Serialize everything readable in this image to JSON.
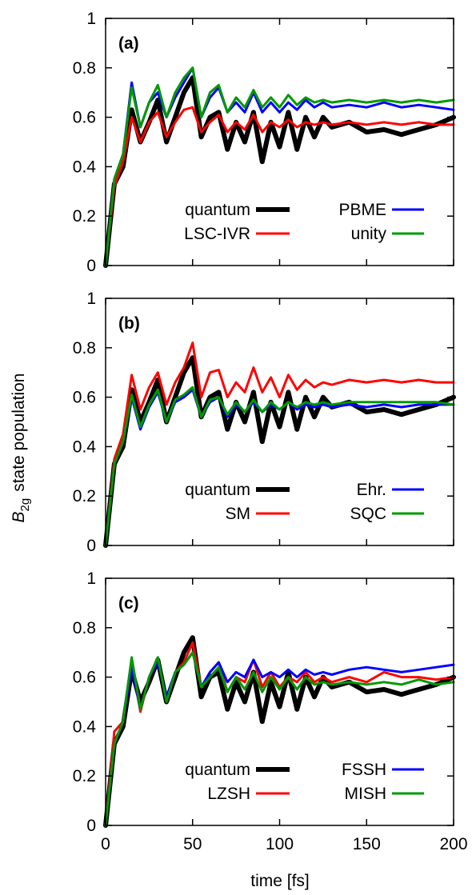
{
  "figure": {
    "ylabel_main": "B",
    "ylabel_sub": "2g",
    "ylabel_rest": "state population",
    "xlabel": "time [fs]"
  },
  "colors": {
    "quantum": "#000000",
    "red": "#ff0000",
    "blue": "#0000ff",
    "green": "#009900"
  },
  "chart_data": [
    {
      "type": "line",
      "panel_label": "(a)",
      "xlim": [
        0,
        200
      ],
      "ylim": [
        0,
        1
      ],
      "xticks": [
        "0",
        "50",
        "100",
        "150",
        "200"
      ],
      "yticks": [
        "0",
        "0.2",
        "0.4",
        "0.6",
        "0.8",
        "1"
      ],
      "grid": false,
      "legend_position": "bottom-right",
      "x": [
        0,
        5,
        10,
        15,
        20,
        25,
        30,
        35,
        40,
        45,
        50,
        55,
        60,
        65,
        70,
        75,
        80,
        85,
        90,
        95,
        100,
        105,
        110,
        115,
        120,
        125,
        130,
        140,
        150,
        160,
        170,
        180,
        190,
        200
      ],
      "series": [
        {
          "name": "quantum",
          "color": "#000000",
          "width": 6,
          "values": [
            0,
            0.33,
            0.4,
            0.63,
            0.5,
            0.58,
            0.67,
            0.5,
            0.6,
            0.7,
            0.76,
            0.52,
            0.6,
            0.62,
            0.47,
            0.58,
            0.5,
            0.62,
            0.42,
            0.58,
            0.48,
            0.62,
            0.47,
            0.6,
            0.52,
            0.6,
            0.56,
            0.58,
            0.54,
            0.55,
            0.53,
            0.55,
            0.57,
            0.6
          ]
        },
        {
          "name": "LSC-IVR",
          "color": "#ff0000",
          "width": 3,
          "values": [
            0,
            0.32,
            0.42,
            0.6,
            0.5,
            0.58,
            0.62,
            0.52,
            0.58,
            0.63,
            0.64,
            0.54,
            0.58,
            0.61,
            0.54,
            0.58,
            0.55,
            0.61,
            0.54,
            0.58,
            0.56,
            0.59,
            0.56,
            0.58,
            0.57,
            0.58,
            0.57,
            0.58,
            0.57,
            0.58,
            0.57,
            0.58,
            0.57,
            0.57
          ]
        },
        {
          "name": "PBME",
          "color": "#0000ff",
          "width": 3,
          "values": [
            0,
            0.35,
            0.45,
            0.74,
            0.56,
            0.66,
            0.7,
            0.6,
            0.68,
            0.74,
            0.8,
            0.6,
            0.68,
            0.72,
            0.62,
            0.66,
            0.62,
            0.7,
            0.62,
            0.66,
            0.62,
            0.66,
            0.63,
            0.67,
            0.64,
            0.66,
            0.64,
            0.65,
            0.64,
            0.66,
            0.64,
            0.65,
            0.64,
            0.63
          ]
        },
        {
          "name": "unity",
          "color": "#009900",
          "width": 3,
          "values": [
            0,
            0.35,
            0.45,
            0.72,
            0.56,
            0.66,
            0.73,
            0.6,
            0.7,
            0.76,
            0.8,
            0.6,
            0.7,
            0.73,
            0.62,
            0.68,
            0.64,
            0.71,
            0.64,
            0.68,
            0.64,
            0.69,
            0.65,
            0.68,
            0.66,
            0.67,
            0.66,
            0.67,
            0.66,
            0.67,
            0.66,
            0.67,
            0.66,
            0.67
          ]
        }
      ],
      "legend": [
        {
          "label": "quantum",
          "color": "#000000",
          "width": 6
        },
        {
          "label": "PBME",
          "color": "#0000ff",
          "width": 3
        },
        {
          "label": "LSC-IVR",
          "color": "#ff0000",
          "width": 3
        },
        {
          "label": "unity",
          "color": "#009900",
          "width": 3
        }
      ]
    },
    {
      "type": "line",
      "panel_label": "(b)",
      "xlim": [
        0,
        200
      ],
      "ylim": [
        0,
        1
      ],
      "xticks": [
        "0",
        "50",
        "100",
        "150",
        "200"
      ],
      "yticks": [
        "0",
        "0.2",
        "0.4",
        "0.6",
        "0.8",
        "1"
      ],
      "grid": false,
      "legend_position": "bottom-right",
      "x": [
        0,
        5,
        10,
        15,
        20,
        25,
        30,
        35,
        40,
        45,
        50,
        55,
        60,
        65,
        70,
        75,
        80,
        85,
        90,
        95,
        100,
        105,
        110,
        115,
        120,
        125,
        130,
        140,
        150,
        160,
        170,
        180,
        190,
        200
      ],
      "series": [
        {
          "name": "quantum",
          "color": "#000000",
          "width": 6,
          "values": [
            0,
            0.33,
            0.4,
            0.63,
            0.5,
            0.58,
            0.67,
            0.5,
            0.6,
            0.7,
            0.76,
            0.52,
            0.6,
            0.62,
            0.47,
            0.58,
            0.5,
            0.62,
            0.42,
            0.58,
            0.48,
            0.62,
            0.47,
            0.6,
            0.52,
            0.6,
            0.56,
            0.58,
            0.54,
            0.55,
            0.53,
            0.55,
            0.57,
            0.6
          ]
        },
        {
          "name": "SM",
          "color": "#ff0000",
          "width": 3,
          "values": [
            0,
            0.35,
            0.45,
            0.69,
            0.55,
            0.64,
            0.7,
            0.57,
            0.66,
            0.72,
            0.82,
            0.6,
            0.7,
            0.71,
            0.6,
            0.66,
            0.62,
            0.72,
            0.62,
            0.68,
            0.6,
            0.69,
            0.63,
            0.67,
            0.64,
            0.66,
            0.65,
            0.67,
            0.66,
            0.67,
            0.66,
            0.67,
            0.66,
            0.66
          ]
        },
        {
          "name": "Ehr.",
          "color": "#0000ff",
          "width": 3,
          "values": [
            0,
            0.33,
            0.42,
            0.6,
            0.47,
            0.56,
            0.62,
            0.5,
            0.58,
            0.6,
            0.63,
            0.52,
            0.58,
            0.6,
            0.52,
            0.57,
            0.54,
            0.58,
            0.54,
            0.57,
            0.55,
            0.58,
            0.55,
            0.57,
            0.56,
            0.57,
            0.56,
            0.57,
            0.56,
            0.57,
            0.56,
            0.57,
            0.57,
            0.57
          ]
        },
        {
          "name": "SQC",
          "color": "#009900",
          "width": 3,
          "values": [
            0,
            0.33,
            0.42,
            0.61,
            0.48,
            0.57,
            0.63,
            0.5,
            0.59,
            0.61,
            0.64,
            0.52,
            0.59,
            0.6,
            0.53,
            0.58,
            0.54,
            0.59,
            0.54,
            0.58,
            0.55,
            0.58,
            0.56,
            0.58,
            0.57,
            0.58,
            0.57,
            0.58,
            0.58,
            0.58,
            0.58,
            0.58,
            0.58,
            0.57
          ]
        }
      ],
      "legend": [
        {
          "label": "quantum",
          "color": "#000000",
          "width": 6
        },
        {
          "label": "Ehr.",
          "color": "#0000ff",
          "width": 3
        },
        {
          "label": "SM",
          "color": "#ff0000",
          "width": 3
        },
        {
          "label": "SQC",
          "color": "#009900",
          "width": 3
        }
      ]
    },
    {
      "type": "line",
      "panel_label": "(c)",
      "xlim": [
        0,
        200
      ],
      "ylim": [
        0,
        1
      ],
      "xticks": [
        "0",
        "50",
        "100",
        "150",
        "200"
      ],
      "yticks": [
        "0",
        "0.2",
        "0.4",
        "0.6",
        "0.8",
        "1"
      ],
      "grid": false,
      "legend_position": "bottom-right",
      "x": [
        0,
        5,
        10,
        15,
        20,
        25,
        30,
        35,
        40,
        45,
        50,
        55,
        60,
        65,
        70,
        75,
        80,
        85,
        90,
        95,
        100,
        105,
        110,
        115,
        120,
        125,
        130,
        140,
        150,
        160,
        170,
        180,
        190,
        200
      ],
      "series": [
        {
          "name": "quantum",
          "color": "#000000",
          "width": 6,
          "values": [
            0,
            0.33,
            0.4,
            0.63,
            0.5,
            0.58,
            0.67,
            0.5,
            0.6,
            0.7,
            0.76,
            0.52,
            0.6,
            0.62,
            0.47,
            0.58,
            0.5,
            0.62,
            0.42,
            0.58,
            0.48,
            0.62,
            0.47,
            0.6,
            0.52,
            0.6,
            0.56,
            0.58,
            0.54,
            0.55,
            0.53,
            0.55,
            0.57,
            0.6
          ]
        },
        {
          "name": "LZSH",
          "color": "#ff0000",
          "width": 3,
          "values": [
            0,
            0.38,
            0.42,
            0.66,
            0.46,
            0.6,
            0.68,
            0.5,
            0.62,
            0.66,
            0.74,
            0.56,
            0.62,
            0.66,
            0.54,
            0.6,
            0.58,
            0.67,
            0.56,
            0.62,
            0.56,
            0.6,
            0.58,
            0.62,
            0.58,
            0.6,
            0.58,
            0.6,
            0.58,
            0.62,
            0.6,
            0.6,
            0.59,
            0.6
          ]
        },
        {
          "name": "FSSH",
          "color": "#0000ff",
          "width": 3,
          "values": [
            0,
            0.33,
            0.42,
            0.64,
            0.47,
            0.6,
            0.66,
            0.52,
            0.62,
            0.65,
            0.7,
            0.56,
            0.62,
            0.66,
            0.58,
            0.62,
            0.6,
            0.67,
            0.6,
            0.62,
            0.6,
            0.63,
            0.6,
            0.63,
            0.61,
            0.62,
            0.61,
            0.63,
            0.64,
            0.63,
            0.62,
            0.63,
            0.64,
            0.65
          ]
        },
        {
          "name": "MISH",
          "color": "#009900",
          "width": 3,
          "values": [
            0,
            0.33,
            0.42,
            0.68,
            0.47,
            0.6,
            0.68,
            0.5,
            0.62,
            0.65,
            0.7,
            0.56,
            0.6,
            0.64,
            0.54,
            0.6,
            0.55,
            0.62,
            0.54,
            0.6,
            0.55,
            0.6,
            0.55,
            0.6,
            0.57,
            0.58,
            0.57,
            0.58,
            0.57,
            0.58,
            0.57,
            0.59,
            0.57,
            0.58
          ]
        }
      ],
      "legend": [
        {
          "label": "quantum",
          "color": "#000000",
          "width": 6
        },
        {
          "label": "FSSH",
          "color": "#0000ff",
          "width": 3
        },
        {
          "label": "LZSH",
          "color": "#ff0000",
          "width": 3
        },
        {
          "label": "MISH",
          "color": "#009900",
          "width": 3
        }
      ]
    }
  ]
}
